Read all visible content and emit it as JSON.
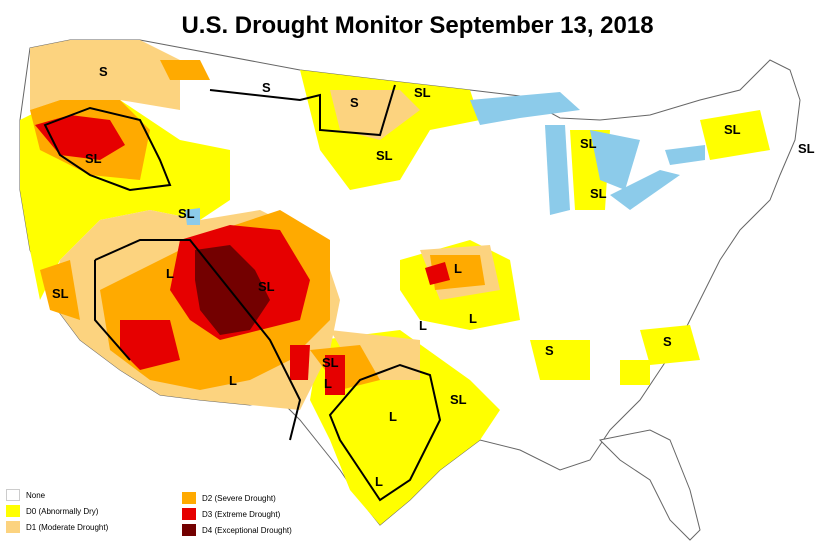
{
  "title": "U.S. Drought Monitor September 13, 2018",
  "colors": {
    "none": "#ffffff",
    "d0": "#ffff00",
    "d1": "#fcd37f",
    "d2": "#ffaa00",
    "d3": "#e60000",
    "d4": "#730000",
    "water": "#8ccbea"
  },
  "legend": {
    "none": "None",
    "d0": "D0 (Abnormally Dry)",
    "d1": "D1 (Moderate Drought)",
    "d2": "D2 (Severe Drought)",
    "d3": "D3 (Extreme Drought)",
    "d4": "D4 (Exceptional Drought)"
  },
  "impact_labels": {
    "s": "S",
    "l": "L",
    "sl": "SL"
  }
}
